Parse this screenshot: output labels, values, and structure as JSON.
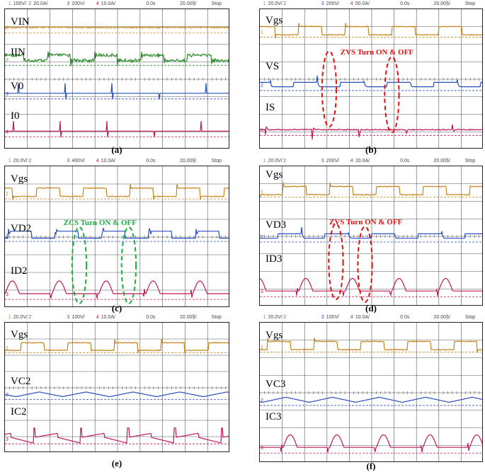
{
  "colors": {
    "ch1": "#c8851c",
    "ch2": "#2e8b2e",
    "ch3": "#2b4fbf",
    "ch4": "#c0185a",
    "red": "#e01010",
    "green": "#18b03c",
    "grid": "#555555"
  },
  "panels": [
    {
      "id": "a",
      "caption": "(a)",
      "header": {
        "ch1": "100V/",
        "ch2": "20.0A/",
        "ch3": "200V/",
        "ch4": "10.0A/",
        "time": "0.0s",
        "scale": "20.00§/",
        "status": "Stop"
      },
      "labels": [
        "VIN",
        "IIN",
        "V0",
        "I0"
      ],
      "annotation": ""
    },
    {
      "id": "b",
      "caption": "(b)",
      "header": {
        "ch1": "20.0V/",
        "ch2": "",
        "ch3": "200V/",
        "ch4": "50.0A/",
        "time": "0.0s",
        "scale": "20.00§/",
        "status": "Stop"
      },
      "labels": [
        "Vgs",
        "VS",
        "IS"
      ],
      "annotation": "ZVS Turn ON & OFF"
    },
    {
      "id": "c",
      "caption": "(c)",
      "header": {
        "ch1": "20.0V/",
        "ch2": "",
        "ch3": "400V/",
        "ch4": "10.0A/",
        "time": "0.0s",
        "scale": "20.00§/",
        "status": "Stop"
      },
      "labels": [
        "Vgs",
        "VD2",
        "ID2"
      ],
      "annotation": "ZCS Turn ON & OFF"
    },
    {
      "id": "d",
      "caption": "(d)",
      "header": {
        "ch1": "20.0V/",
        "ch2": "",
        "ch3": "200V/",
        "ch4": "20.0A/",
        "time": "0.0s",
        "scale": "20.00§/",
        "status": "Stop"
      },
      "labels": [
        "Vgs",
        "VD3",
        "ID3"
      ],
      "annotation": "ZVS Turn ON & OFF"
    },
    {
      "id": "e",
      "caption": "(e)",
      "header": {
        "ch1": "20.0V/",
        "ch2": "",
        "ch3": "100V/",
        "ch4": "10.0A/",
        "time": "0.0s",
        "scale": "20.00§/",
        "status": "Stop"
      },
      "labels": [
        "Vgs",
        "VC2",
        "IC2"
      ],
      "annotation": ""
    },
    {
      "id": "f",
      "caption": "(f)",
      "header": {
        "ch1": "20.0V/",
        "ch2": "",
        "ch3": "100V/",
        "ch4": "10.0A/",
        "time": "0.0s",
        "scale": "20.00§/",
        "status": "Stop"
      },
      "labels": [
        "Vgs",
        "VC3",
        "IC3"
      ],
      "annotation": ""
    }
  ],
  "chart_data": [
    {
      "type": "line",
      "panel": "a",
      "series": [
        {
          "name": "VIN",
          "shape": "flat-noisy"
        },
        {
          "name": "IIN",
          "shape": "ringing-pulses"
        },
        {
          "name": "V0",
          "shape": "flat-spikes"
        },
        {
          "name": "I0",
          "shape": "flat-spikes"
        }
      ]
    },
    {
      "type": "line",
      "panel": "b",
      "series": [
        {
          "name": "Vgs",
          "shape": "square"
        },
        {
          "name": "VS",
          "shape": "square-ringing"
        },
        {
          "name": "IS",
          "shape": "spikes"
        }
      ]
    },
    {
      "type": "line",
      "panel": "c",
      "series": [
        {
          "name": "Vgs",
          "shape": "square"
        },
        {
          "name": "VD2",
          "shape": "square-inverted"
        },
        {
          "name": "ID2",
          "shape": "half-sine"
        }
      ]
    },
    {
      "type": "line",
      "panel": "d",
      "series": [
        {
          "name": "Vgs",
          "shape": "square"
        },
        {
          "name": "VD3",
          "shape": "square-ringing"
        },
        {
          "name": "ID3",
          "shape": "half-sine"
        }
      ]
    },
    {
      "type": "line",
      "panel": "e",
      "series": [
        {
          "name": "Vgs",
          "shape": "square"
        },
        {
          "name": "VC2",
          "shape": "triangle"
        },
        {
          "name": "IC2",
          "shape": "sawtooth"
        }
      ]
    },
    {
      "type": "line",
      "panel": "f",
      "series": [
        {
          "name": "Vgs",
          "shape": "square"
        },
        {
          "name": "VC3",
          "shape": "triangle"
        },
        {
          "name": "IC3",
          "shape": "half-sine"
        }
      ]
    }
  ]
}
